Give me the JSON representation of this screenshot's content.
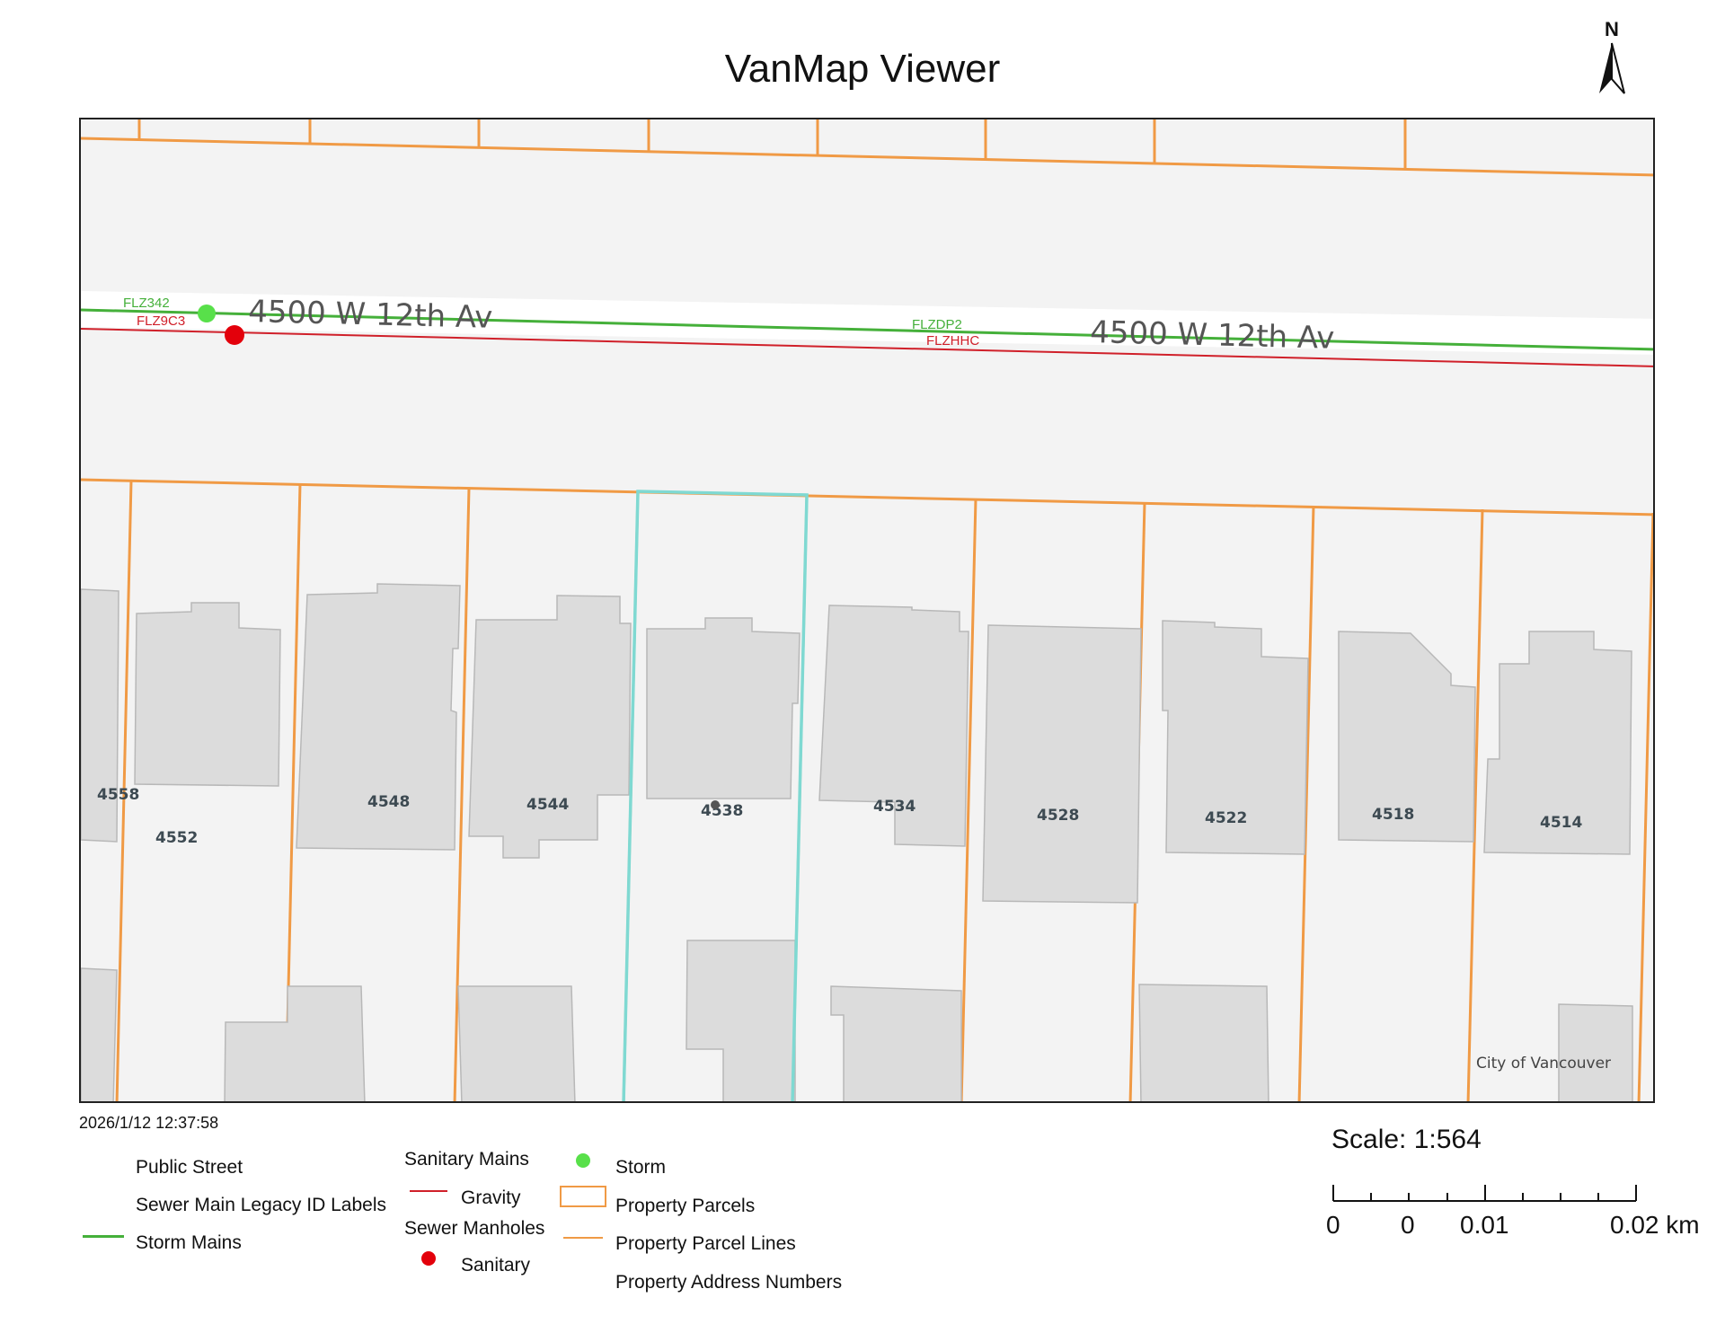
{
  "title": "VanMap Viewer",
  "north_label": "N",
  "map": {
    "street_labels": [
      "4500 W 12th Av",
      "4500 W 12th Av"
    ],
    "main_ids": {
      "storm": [
        "FLZ342",
        "FLZDP2"
      ],
      "sanitary": [
        "FLZ9C3",
        "FLZHHC"
      ]
    },
    "addresses": [
      "4558",
      "4552",
      "4548",
      "4544",
      "4538",
      "4534",
      "4528",
      "4522",
      "4518",
      "4514"
    ],
    "credit": "City of Vancouver",
    "colors": {
      "background": "#f3f3f3",
      "street": "#ffffff",
      "storm": "#45b03a",
      "sanitary": "#d0202a",
      "parcel": "#f09a45",
      "selected": "#7fd9d2",
      "building": "#dcdcdc"
    }
  },
  "timestamp": "2026/1/12 12:37:58",
  "legend": {
    "public_street": "Public Street",
    "legacy_labels": "Sewer Main Legacy ID Labels",
    "storm_mains": "Storm Mains",
    "sanitary_mains": "Sanitary Mains",
    "gravity": "Gravity",
    "sewer_manholes": "Sewer Manholes",
    "sanitary": "Sanitary",
    "storm": "Storm",
    "property_parcels": "Property Parcels",
    "property_parcel_lines": "Property Parcel Lines",
    "property_address_numbers": "Property Address Numbers"
  },
  "scale": {
    "label": "Scale: 1:564",
    "ticks": [
      "0",
      "0",
      "0.01",
      "0.02 km"
    ]
  }
}
